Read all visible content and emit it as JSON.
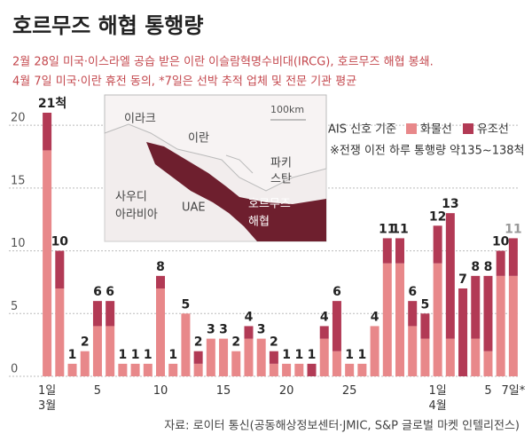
{
  "chart_data": {
    "type": "stacked_bar",
    "title": "호르무즈 해협 통행량",
    "subtitle": [
      "2월 28일 미국·이스라엘 공습 받은 이란 이슬람혁명수비대(IRCG), 호르무즈 해협 봉쇄.",
      "4월 7일 미국·이란 휴전 동의, *7일은 선박 추적 업체 및 전문 기관 평균"
    ],
    "legend_title": "AIS 신호 기준",
    "note": "※전쟁 이전 하루 통행량 약135~138척",
    "source": "자료: 로이터 통신(공동해상정보센터·JMIC, S&P 글로벌 마켓 인텔리전스)",
    "map_labels": {
      "iraq": "이라크",
      "iran": "이란",
      "scale": "100km",
      "saudi": [
        "사우디",
        "아라비아"
      ],
      "uae": "UAE",
      "pakistan": [
        "파키",
        "스탄"
      ],
      "strait": [
        "호르무즈",
        "해협"
      ]
    },
    "categories": [
      "1일\n3월",
      null,
      null,
      null,
      "5",
      null,
      null,
      null,
      null,
      "10",
      null,
      null,
      null,
      null,
      "15",
      null,
      null,
      null,
      null,
      "20",
      null,
      null,
      null,
      null,
      "25",
      null,
      null,
      null,
      null,
      null,
      null,
      "1일\n4월",
      null,
      null,
      null,
      "5",
      null,
      "7일*"
    ],
    "series": [
      {
        "name": "화물선",
        "color": "#e8888a",
        "values": [
          18,
          7,
          1,
          2,
          4,
          4,
          1,
          1,
          1,
          7,
          1,
          5,
          1,
          3,
          3,
          2,
          3,
          3,
          1,
          1,
          1,
          0,
          3,
          2,
          1,
          1,
          4,
          9,
          9,
          4,
          3,
          9,
          3,
          0,
          3,
          2,
          8,
          8
        ]
      },
      {
        "name": "유조선",
        "color": "#b23a55",
        "values": [
          3,
          3,
          0,
          0,
          2,
          2,
          0,
          0,
          0,
          1,
          0,
          0,
          1,
          0,
          0,
          0,
          1,
          0,
          1,
          0,
          0,
          1,
          1,
          4,
          0,
          0,
          0,
          2,
          2,
          2,
          2,
          3,
          10,
          7,
          5,
          6,
          2,
          3
        ]
      }
    ],
    "total_labels": [
      "21척",
      "10",
      "1",
      "2",
      "6",
      "6",
      "1",
      "1",
      "1",
      "8",
      "1",
      "5",
      "2",
      "3",
      "3",
      "2",
      "4",
      "3",
      "2",
      "1",
      "1",
      "1",
      "4",
      "6",
      "1",
      "1",
      "4",
      "11",
      "11",
      "6",
      "5",
      "12",
      "13",
      "7",
      "8",
      "8",
      "10",
      "11"
    ],
    "ylim": [
      0,
      21
    ],
    "yticks": [
      0,
      5,
      10,
      15,
      20
    ],
    "grid": true
  }
}
